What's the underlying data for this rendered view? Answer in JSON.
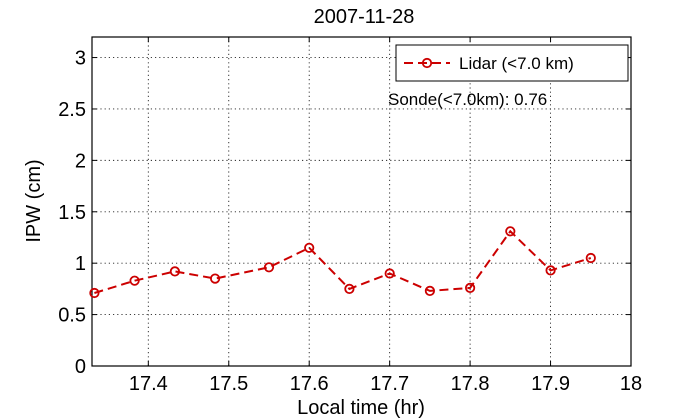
{
  "chart_data": {
    "type": "line",
    "title": "2007-11-28",
    "xlabel": "Local time (hr)",
    "ylabel": "IPW (cm)",
    "xlim": [
      17.33,
      18.0
    ],
    "ylim": [
      0,
      3.2
    ],
    "xticks": [
      17.4,
      17.5,
      17.6,
      17.7,
      17.8,
      17.9,
      18.0
    ],
    "xtick_labels": [
      "17.4",
      "17.5",
      "17.6",
      "17.7",
      "17.8",
      "17.9",
      "18"
    ],
    "yticks": [
      0,
      0.5,
      1,
      1.5,
      2,
      2.5,
      3
    ],
    "ytick_labels": [
      "0",
      "0.5",
      "1",
      "1.5",
      "2",
      "2.5",
      "3"
    ],
    "grid": true,
    "legend_position": "top-right",
    "series": [
      {
        "name": "Lidar (<7.0 km)",
        "color": "#cc0000",
        "line_style": "dashed",
        "marker": "circle",
        "x": [
          17.333,
          17.383,
          17.433,
          17.483,
          17.55,
          17.6,
          17.65,
          17.7,
          17.75,
          17.8,
          17.85,
          17.9,
          17.95
        ],
        "y": [
          0.71,
          0.83,
          0.92,
          0.85,
          0.96,
          1.15,
          0.75,
          0.9,
          0.73,
          0.76,
          1.31,
          0.93,
          1.05
        ]
      }
    ],
    "annotation": "Sonde(<7.0km): 0.76"
  }
}
